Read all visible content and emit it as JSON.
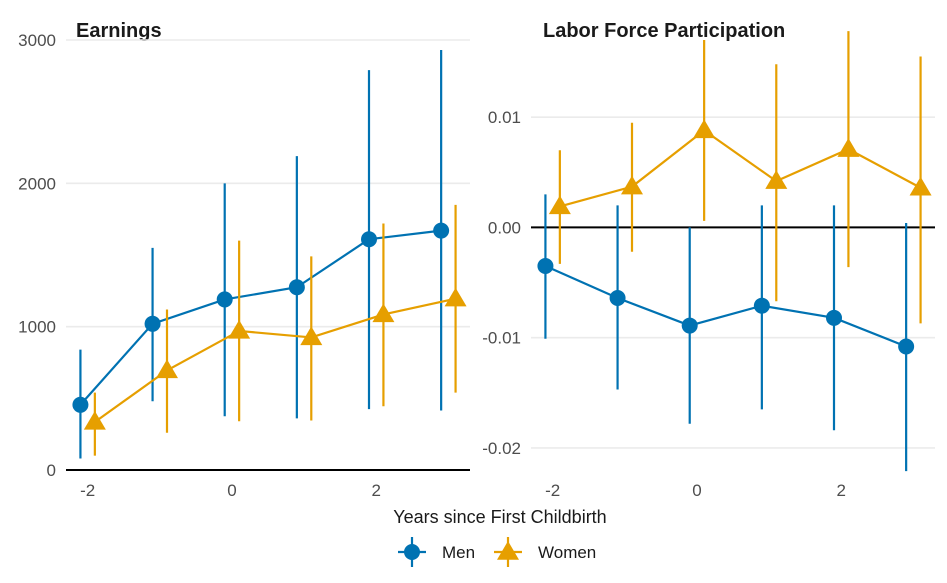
{
  "chart_data": [
    {
      "type": "line",
      "title": "Earnings",
      "xlabel": "Years since First Childbirth",
      "ylabel": "",
      "xlim": [
        -2.3,
        3.3
      ],
      "ylim": [
        0,
        3000
      ],
      "xticks": [
        -2,
        0,
        2
      ],
      "yticks": [
        0,
        1000,
        2000,
        3000
      ],
      "ytick_labels": [
        "0",
        "1000",
        "2000",
        "3000"
      ],
      "reference_line": 0,
      "series": [
        {
          "name": "Men",
          "marker": "circle",
          "color": "#0072B2",
          "x": [
            -2,
            -1,
            0,
            1,
            2,
            3
          ],
          "y": [
            455,
            1020,
            1190,
            1275,
            1610,
            1670
          ],
          "lower": [
            80,
            480,
            375,
            360,
            425,
            415
          ],
          "upper": [
            840,
            1550,
            2000,
            2190,
            2790,
            2930
          ]
        },
        {
          "name": "Women",
          "marker": "triangle",
          "color": "#E69F00",
          "x": [
            -2,
            -1,
            0,
            1,
            2,
            3
          ],
          "y": [
            335,
            695,
            970,
            925,
            1085,
            1195
          ],
          "lower": [
            100,
            260,
            340,
            345,
            445,
            540
          ],
          "upper": [
            540,
            1120,
            1600,
            1490,
            1720,
            1850
          ]
        }
      ]
    },
    {
      "type": "line",
      "title": "Labor Force Participation",
      "xlabel": "Years since First Childbirth",
      "ylabel": "",
      "xlim": [
        -2.3,
        3.3
      ],
      "ylim": [
        -0.022,
        0.017
      ],
      "xticks": [
        -2,
        0,
        2
      ],
      "yticks": [
        -0.02,
        -0.01,
        0,
        0.01
      ],
      "ytick_labels": [
        "-0.02",
        "-0.01",
        "0.00",
        "0.01"
      ],
      "reference_line": 0,
      "series": [
        {
          "name": "Men",
          "marker": "circle",
          "color": "#0072B2",
          "x": [
            -2,
            -1,
            0,
            1,
            2,
            3
          ],
          "y": [
            -0.0035,
            -0.0064,
            -0.0089,
            -0.0071,
            -0.0082,
            -0.0108
          ],
          "lower": [
            -0.0101,
            -0.0147,
            -0.0178,
            -0.0165,
            -0.0184,
            -0.0221
          ],
          "upper": [
            0.003,
            0.002,
            0.0,
            0.002,
            0.002,
            0.0004
          ]
        },
        {
          "name": "Women",
          "marker": "triangle",
          "color": "#E69F00",
          "x": [
            -2,
            -1,
            0,
            1,
            2,
            3
          ],
          "y": [
            0.0019,
            0.0037,
            0.0088,
            0.0042,
            0.0071,
            0.0036
          ],
          "lower": [
            -0.0033,
            -0.0022,
            0.0006,
            -0.0067,
            -0.0036,
            -0.0087
          ],
          "upper": [
            0.007,
            0.0095,
            0.017,
            0.0148,
            0.0178,
            0.0155
          ]
        }
      ]
    }
  ],
  "legend": {
    "position": "bottom",
    "items": [
      {
        "label": "Men",
        "color": "#0072B2",
        "marker": "circle"
      },
      {
        "label": "Women",
        "color": "#E69F00",
        "marker": "triangle"
      }
    ]
  }
}
